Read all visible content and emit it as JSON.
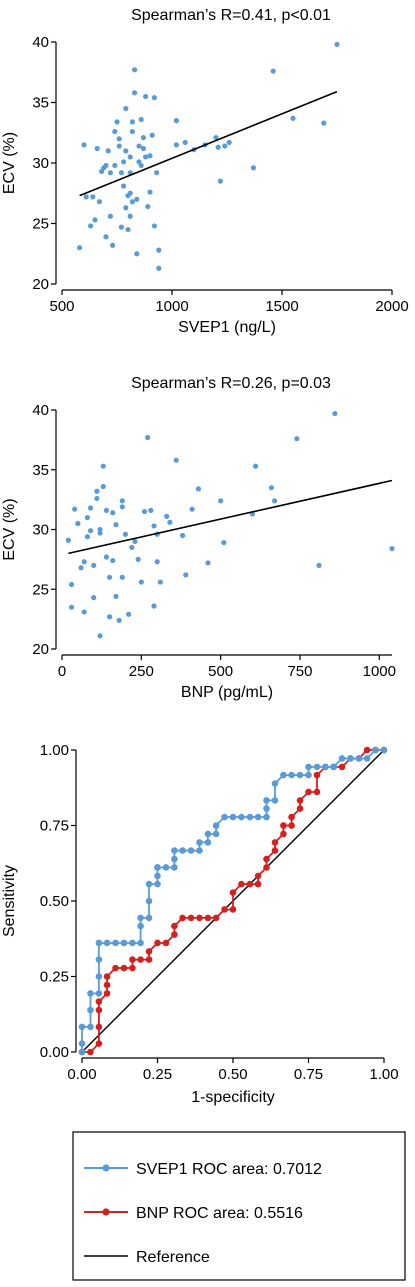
{
  "chart_data": [
    {
      "type": "scatter",
      "title": "Spearman’s   R=0.41, p<0.01",
      "xlabel": "SVEP1 (ng/L)",
      "ylabel": "ECV (%)",
      "xlim": [
        500,
        2000
      ],
      "ylim": [
        20,
        40
      ],
      "xticks": [
        500,
        1000,
        1500,
        2000
      ],
      "yticks": [
        20,
        25,
        30,
        35,
        40
      ],
      "grid": false,
      "point_color": "#5b9bd5",
      "fit_line": {
        "x": [
          580,
          1750
        ],
        "y": [
          27.3,
          35.9
        ]
      },
      "points": [
        [
          580,
          23.0
        ],
        [
          600,
          31.5
        ],
        [
          610,
          27.2
        ],
        [
          630,
          24.8
        ],
        [
          640,
          27.2
        ],
        [
          650,
          25.3
        ],
        [
          660,
          31.2
        ],
        [
          670,
          26.8
        ],
        [
          680,
          29.3
        ],
        [
          690,
          29.6
        ],
        [
          700,
          29.8
        ],
        [
          710,
          31.0
        ],
        [
          700,
          23.9
        ],
        [
          720,
          29.2
        ],
        [
          720,
          25.6
        ],
        [
          730,
          23.2
        ],
        [
          740,
          29.8
        ],
        [
          740,
          32.6
        ],
        [
          750,
          33.4
        ],
        [
          760,
          32.0
        ],
        [
          760,
          31.4
        ],
        [
          770,
          29.2
        ],
        [
          770,
          24.7
        ],
        [
          780,
          30.1
        ],
        [
          780,
          28.1
        ],
        [
          790,
          26.3
        ],
        [
          790,
          31.0
        ],
        [
          790,
          34.5
        ],
        [
          800,
          27.3
        ],
        [
          800,
          24.5
        ],
        [
          810,
          25.6
        ],
        [
          810,
          29.2
        ],
        [
          810,
          27.5
        ],
        [
          810,
          30.5
        ],
        [
          820,
          33.4
        ],
        [
          820,
          26.8
        ],
        [
          820,
          32.6
        ],
        [
          830,
          37.7
        ],
        [
          830,
          35.8
        ],
        [
          840,
          27.0
        ],
        [
          840,
          22.5
        ],
        [
          850,
          30.1
        ],
        [
          850,
          31.4
        ],
        [
          860,
          29.8
        ],
        [
          860,
          33.6
        ],
        [
          870,
          32.1
        ],
        [
          870,
          31.2
        ],
        [
          880,
          35.5
        ],
        [
          880,
          30.5
        ],
        [
          890,
          26.4
        ],
        [
          900,
          27.6
        ],
        [
          900,
          30.6
        ],
        [
          910,
          32.3
        ],
        [
          920,
          35.4
        ],
        [
          920,
          24.8
        ],
        [
          930,
          29.2
        ],
        [
          940,
          21.3
        ],
        [
          940,
          22.8
        ],
        [
          1020,
          33.5
        ],
        [
          1020,
          31.5
        ],
        [
          1060,
          31.7
        ],
        [
          1100,
          31.1
        ],
        [
          1150,
          31.5
        ],
        [
          1200,
          32.1
        ],
        [
          1210,
          31.3
        ],
        [
          1220,
          28.5
        ],
        [
          1240,
          31.4
        ],
        [
          1260,
          31.7
        ],
        [
          1370,
          29.6
        ],
        [
          1460,
          37.6
        ],
        [
          1550,
          33.7
        ],
        [
          1690,
          33.3
        ],
        [
          1750,
          39.8
        ]
      ]
    },
    {
      "type": "scatter",
      "title": "Spearman’s   R=0.26, p=0.03",
      "xlabel": "BNP (pg/mL)",
      "ylabel": "ECV (%)",
      "xlim": [
        0,
        1040
      ],
      "ylim": [
        20,
        40
      ],
      "xticks": [
        0,
        250,
        500,
        750,
        1000
      ],
      "yticks": [
        20,
        25,
        30,
        35,
        40
      ],
      "grid": false,
      "point_color": "#5b9bd5",
      "fit_line": {
        "x": [
          20,
          1040
        ],
        "y": [
          28.0,
          34.1
        ]
      },
      "points": [
        [
          20,
          29.1
        ],
        [
          30,
          25.4
        ],
        [
          30,
          23.5
        ],
        [
          40,
          31.7
        ],
        [
          50,
          30.5
        ],
        [
          60,
          26.8
        ],
        [
          70,
          23.1
        ],
        [
          70,
          27.3
        ],
        [
          80,
          29.4
        ],
        [
          80,
          31.0
        ],
        [
          90,
          31.8
        ],
        [
          90,
          29.9
        ],
        [
          100,
          27.0
        ],
        [
          100,
          24.3
        ],
        [
          110,
          33.2
        ],
        [
          110,
          32.6
        ],
        [
          120,
          30.0
        ],
        [
          120,
          29.7
        ],
        [
          120,
          21.1
        ],
        [
          130,
          35.3
        ],
        [
          130,
          33.6
        ],
        [
          140,
          31.6
        ],
        [
          140,
          27.7
        ],
        [
          150,
          26.0
        ],
        [
          150,
          22.7
        ],
        [
          160,
          31.4
        ],
        [
          160,
          27.4
        ],
        [
          170,
          24.4
        ],
        [
          170,
          30.4
        ],
        [
          180,
          22.4
        ],
        [
          190,
          32.4
        ],
        [
          190,
          31.9
        ],
        [
          190,
          26.0
        ],
        [
          200,
          29.6
        ],
        [
          210,
          22.9
        ],
        [
          220,
          28.5
        ],
        [
          230,
          29.0
        ],
        [
          240,
          27.5
        ],
        [
          250,
          25.6
        ],
        [
          260,
          31.5
        ],
        [
          270,
          37.7
        ],
        [
          280,
          31.6
        ],
        [
          290,
          30.3
        ],
        [
          290,
          23.6
        ],
        [
          300,
          27.3
        ],
        [
          300,
          29.6
        ],
        [
          310,
          25.6
        ],
        [
          330,
          31.1
        ],
        [
          340,
          30.6
        ],
        [
          360,
          35.8
        ],
        [
          380,
          29.5
        ],
        [
          390,
          26.2
        ],
        [
          410,
          31.7
        ],
        [
          430,
          33.4
        ],
        [
          460,
          27.2
        ],
        [
          500,
          32.4
        ],
        [
          510,
          28.9
        ],
        [
          600,
          31.3
        ],
        [
          610,
          35.3
        ],
        [
          660,
          33.5
        ],
        [
          670,
          32.4
        ],
        [
          740,
          37.6
        ],
        [
          810,
          27.0
        ],
        [
          860,
          39.7
        ],
        [
          1040,
          28.4
        ]
      ]
    },
    {
      "type": "line",
      "xlabel": "1-specificity",
      "ylabel": "Sensitivity",
      "xlim": [
        0,
        1
      ],
      "ylim": [
        0,
        1
      ],
      "xticks": [
        "0.00",
        "0.25",
        "0.50",
        "0.75",
        "1.00"
      ],
      "yticks": [
        "0.00",
        "0.25",
        "0.50",
        "0.75",
        "1.00"
      ],
      "grid": false,
      "legend_placement": "bottom",
      "series": [
        {
          "name": "SVEP1 ROC area: 0.7012",
          "color": "#5b9bd5",
          "x": [
            0,
            0,
            0,
            0.028,
            0.028,
            0.028,
            0.056,
            0.056,
            0.056,
            0.056,
            0.083,
            0.111,
            0.139,
            0.167,
            0.194,
            0.194,
            0.194,
            0.222,
            0.222,
            0.222,
            0.25,
            0.25,
            0.25,
            0.25,
            0.278,
            0.306,
            0.306,
            0.306,
            0.333,
            0.361,
            0.389,
            0.389,
            0.417,
            0.417,
            0.444,
            0.444,
            0.472,
            0.5,
            0.528,
            0.556,
            0.583,
            0.611,
            0.611,
            0.611,
            0.639,
            0.639,
            0.667,
            0.694,
            0.722,
            0.75,
            0.75,
            0.778,
            0.806,
            0.833,
            0.861,
            0.889,
            0.917,
            0.944,
            0.972,
            1.0
          ],
          "y": [
            0.0,
            0.028,
            0.083,
            0.083,
            0.139,
            0.194,
            0.194,
            0.25,
            0.306,
            0.361,
            0.361,
            0.361,
            0.361,
            0.361,
            0.361,
            0.417,
            0.444,
            0.444,
            0.5,
            0.556,
            0.556,
            0.583,
            0.611,
            0.611,
            0.611,
            0.611,
            0.639,
            0.667,
            0.667,
            0.667,
            0.667,
            0.694,
            0.694,
            0.722,
            0.722,
            0.75,
            0.778,
            0.778,
            0.778,
            0.778,
            0.778,
            0.778,
            0.806,
            0.833,
            0.833,
            0.889,
            0.917,
            0.917,
            0.917,
            0.917,
            0.944,
            0.944,
            0.944,
            0.944,
            0.972,
            0.972,
            0.972,
            0.972,
            1.0,
            1.0
          ]
        },
        {
          "name": "BNP ROC area: 0.5516",
          "color": "#d62020",
          "x": [
            0,
            0.028,
            0.056,
            0.056,
            0.056,
            0.056,
            0.083,
            0.083,
            0.083,
            0.111,
            0.139,
            0.167,
            0.167,
            0.194,
            0.222,
            0.222,
            0.25,
            0.278,
            0.306,
            0.306,
            0.333,
            0.361,
            0.389,
            0.417,
            0.444,
            0.472,
            0.5,
            0.5,
            0.528,
            0.556,
            0.583,
            0.583,
            0.611,
            0.611,
            0.639,
            0.639,
            0.667,
            0.667,
            0.694,
            0.694,
            0.722,
            0.722,
            0.75,
            0.778,
            0.778,
            0.806,
            0.833,
            0.861,
            0.889,
            0.917,
            0.944,
            0.972,
            1.0
          ],
          "y": [
            0.0,
            0.0,
            0.028,
            0.083,
            0.139,
            0.167,
            0.194,
            0.222,
            0.25,
            0.278,
            0.278,
            0.278,
            0.306,
            0.306,
            0.306,
            0.333,
            0.361,
            0.361,
            0.389,
            0.417,
            0.444,
            0.444,
            0.444,
            0.444,
            0.444,
            0.472,
            0.472,
            0.528,
            0.556,
            0.556,
            0.556,
            0.583,
            0.611,
            0.639,
            0.667,
            0.694,
            0.722,
            0.75,
            0.75,
            0.778,
            0.806,
            0.833,
            0.861,
            0.861,
            0.917,
            0.944,
            0.944,
            0.944,
            0.972,
            0.972,
            1.0,
            1.0,
            1.0
          ]
        },
        {
          "name": "Reference",
          "color": "#000000",
          "x": [
            0,
            1
          ],
          "y": [
            0,
            1
          ]
        }
      ]
    }
  ]
}
